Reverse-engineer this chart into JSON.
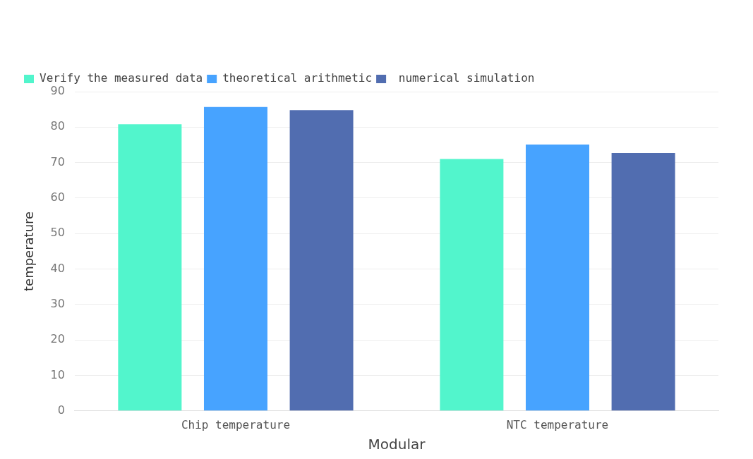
{
  "chart_data": {
    "type": "bar",
    "categories": [
      "Chip temperature",
      "NTC temperature"
    ],
    "xlabel": "Modular",
    "ylabel": "temperature",
    "series": [
      {
        "name": "Verify the measured data",
        "color": "#52f5cc",
        "values": [
          80.8,
          71
        ]
      },
      {
        "name": "theoretical arithmetic",
        "color": "#47a3ff",
        "values": [
          85.7,
          75.1
        ]
      },
      {
        "name": " numerical simulation",
        "color": "#516db0",
        "values": [
          84.8,
          72.7
        ]
      }
    ],
    "ylim": [
      0,
      90
    ],
    "yticks": [
      0,
      10,
      20,
      30,
      40,
      50,
      60,
      70,
      80,
      90
    ],
    "grid": "y",
    "legend": "top left"
  }
}
